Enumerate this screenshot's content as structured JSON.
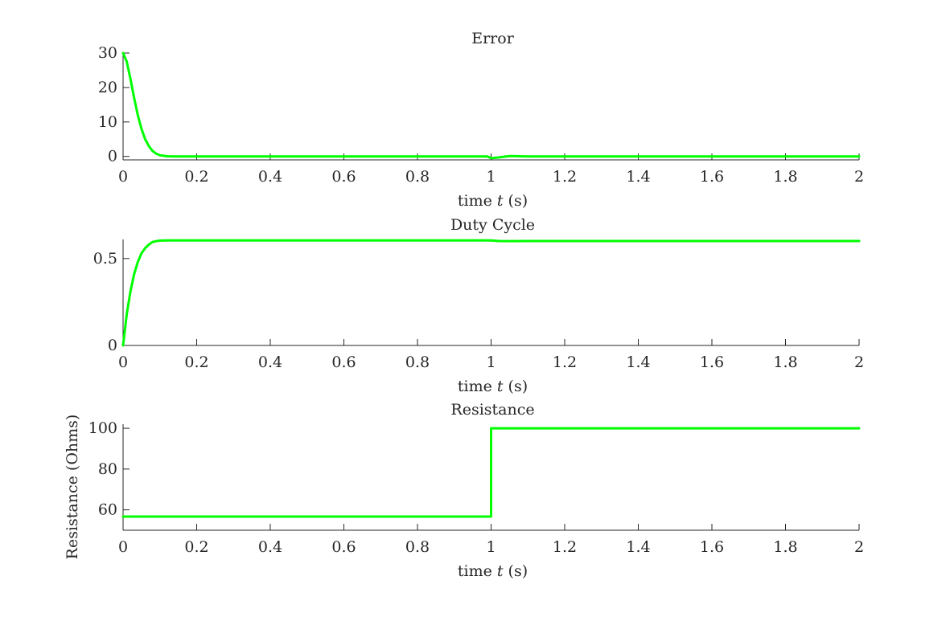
{
  "figure": {
    "background": "#ffffff",
    "line_color": "#00ff00"
  },
  "chart_data": [
    {
      "type": "line",
      "title": "Error",
      "xlabel": "time t (s)",
      "xlabel_prefix": "time",
      "xlabel_var": "t",
      "xlabel_unit": "(s)",
      "ylabel": "",
      "xlim": [
        0,
        2
      ],
      "ylim": [
        -1,
        30
      ],
      "xticks": [
        0,
        0.2,
        0.4,
        0.6,
        0.8,
        1,
        1.2,
        1.4,
        1.6,
        1.8,
        2
      ],
      "xtick_labels": [
        "0",
        "0.2",
        "0.4",
        "0.6",
        "0.8",
        "1",
        "1.2",
        "1.4",
        "1.6",
        "1.8",
        "2"
      ],
      "yticks": [
        0,
        10,
        20,
        30
      ],
      "ytick_labels": [
        "0",
        "10",
        "20",
        "30"
      ],
      "grid": false,
      "series": [
        {
          "color": "#00ff00",
          "x": [
            0,
            0.01,
            0.02,
            0.03,
            0.04,
            0.05,
            0.06,
            0.07,
            0.08,
            0.09,
            0.1,
            0.12,
            0.14,
            0.2,
            0.4,
            0.6,
            0.8,
            0.99,
            1.0,
            1.02,
            1.05,
            1.1,
            1.2,
            1.5,
            2.0
          ],
          "y": [
            30,
            27.5,
            22.5,
            17,
            12,
            8,
            5,
            3,
            1.6,
            0.8,
            0.35,
            0.05,
            0,
            0,
            0,
            0,
            0,
            0,
            -0.5,
            -0.3,
            0.1,
            0,
            0,
            0,
            0
          ]
        }
      ]
    },
    {
      "type": "line",
      "title": "Duty Cycle",
      "xlabel": "time t (s)",
      "xlabel_prefix": "time",
      "xlabel_var": "t",
      "xlabel_unit": "(s)",
      "ylabel": "",
      "xlim": [
        0,
        2
      ],
      "ylim": [
        0,
        0.61
      ],
      "xticks": [
        0,
        0.2,
        0.4,
        0.6,
        0.8,
        1,
        1.2,
        1.4,
        1.6,
        1.8,
        2
      ],
      "xtick_labels": [
        "0",
        "0.2",
        "0.4",
        "0.6",
        "0.8",
        "1",
        "1.2",
        "1.4",
        "1.6",
        "1.8",
        "2"
      ],
      "yticks": [
        0,
        0.5
      ],
      "ytick_labels": [
        "0",
        "0.5"
      ],
      "grid": false,
      "series": [
        {
          "color": "#00ff00",
          "x": [
            0,
            0.005,
            0.01,
            0.02,
            0.03,
            0.04,
            0.05,
            0.06,
            0.07,
            0.08,
            0.09,
            0.1,
            0.12,
            0.15,
            0.2,
            0.4,
            0.6,
            0.8,
            1.0,
            1.02,
            1.05,
            1.1,
            1.5,
            2.0
          ],
          "y": [
            0,
            0.09,
            0.18,
            0.31,
            0.41,
            0.48,
            0.53,
            0.56,
            0.58,
            0.595,
            0.6,
            0.603,
            0.604,
            0.604,
            0.604,
            0.604,
            0.604,
            0.604,
            0.604,
            0.601,
            0.6,
            0.601,
            0.601,
            0.601
          ]
        }
      ]
    },
    {
      "type": "line",
      "title": "Resistance",
      "xlabel": "time t (s)",
      "xlabel_prefix": "time",
      "xlabel_var": "t",
      "xlabel_unit": "(s)",
      "ylabel": "Resistance (Ohms)",
      "xlim": [
        0,
        2
      ],
      "ylim": [
        50,
        102
      ],
      "xticks": [
        0,
        0.2,
        0.4,
        0.6,
        0.8,
        1,
        1.2,
        1.4,
        1.6,
        1.8,
        2
      ],
      "xtick_labels": [
        "0",
        "0.2",
        "0.4",
        "0.6",
        "0.8",
        "1",
        "1.2",
        "1.4",
        "1.6",
        "1.8",
        "2"
      ],
      "yticks": [
        60,
        80,
        100
      ],
      "ytick_labels": [
        "60",
        "80",
        "100"
      ],
      "grid": false,
      "series": [
        {
          "color": "#00ff00",
          "x": [
            0,
            1.0,
            1.0,
            2.0
          ],
          "y": [
            56.7,
            56.7,
            100,
            100
          ]
        }
      ]
    }
  ]
}
